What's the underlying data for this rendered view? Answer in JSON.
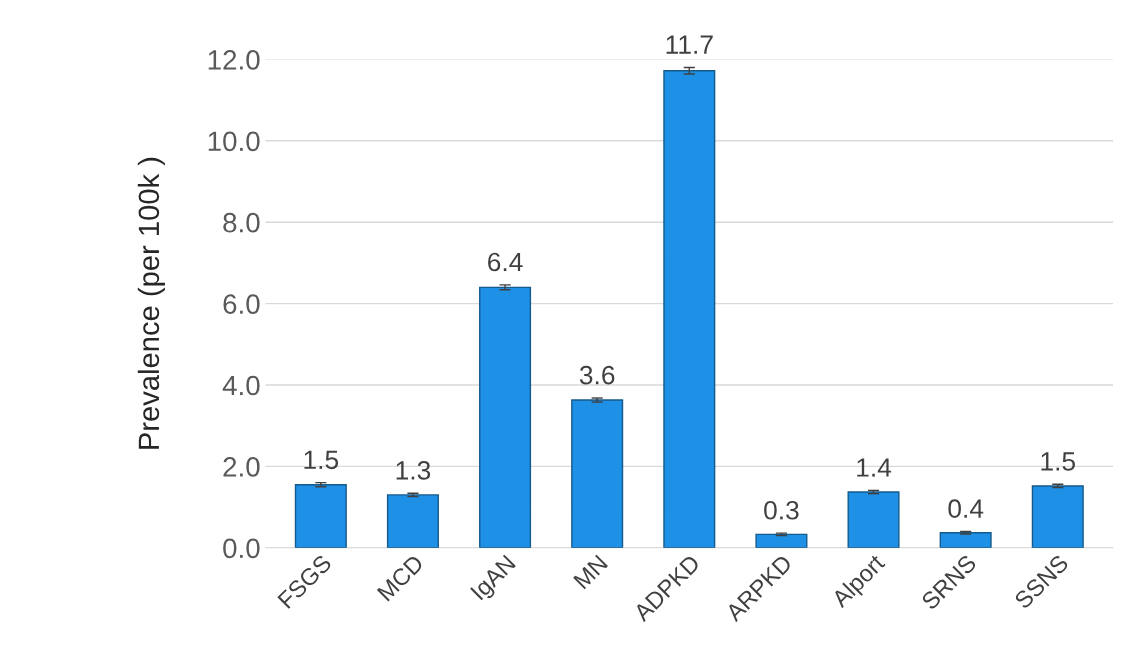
{
  "chart_data": {
    "type": "bar",
    "ylabel": "Prevalence (per 100k )",
    "categories": [
      "FSGS",
      "MCD",
      "IgAN",
      "MN",
      "ADPKD",
      "ARPKD",
      "Alport",
      "SRNS",
      "SSNS"
    ],
    "values": [
      1.55,
      1.3,
      6.4,
      3.63,
      11.72,
      0.33,
      1.37,
      0.37,
      1.52
    ],
    "value_labels": [
      "1.5",
      "1.3",
      "6.4",
      "3.6",
      "11.7",
      "0.3",
      "1.4",
      "0.4",
      "1.5"
    ],
    "errors": [
      0.05,
      0.04,
      0.06,
      0.05,
      0.08,
      0.03,
      0.04,
      0.03,
      0.04
    ],
    "color": "#1e90e6",
    "ylim": [
      0,
      12
    ],
    "yticks": [
      {
        "value": 0,
        "label": "0.0"
      },
      {
        "value": 2,
        "label": "2.0"
      },
      {
        "value": 4,
        "label": "4.0"
      },
      {
        "value": 6,
        "label": "6.0"
      },
      {
        "value": 8,
        "label": "8.0"
      },
      {
        "value": 10,
        "label": "10.0"
      },
      {
        "value": 12,
        "label": "12.0"
      }
    ],
    "grid": "y"
  }
}
